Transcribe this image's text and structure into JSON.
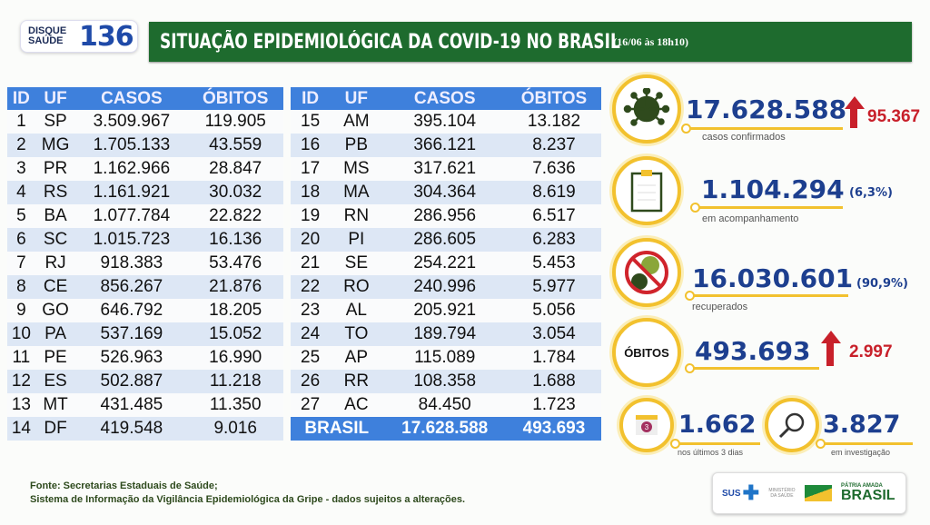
{
  "logo": {
    "top": "DISQUE",
    "bottom": "SAÚDE",
    "number": "136"
  },
  "header": {
    "title": "SITUAÇÃO EPIDEMIOLÓGICA DA COVID-19 NO BRASIL",
    "date": "(16/06 às 18h10)"
  },
  "table": {
    "columns": [
      "ID",
      "UF",
      "CASOS",
      "ÓBITOS"
    ],
    "left": [
      [
        "1",
        "SP",
        "3.509.967",
        "119.905"
      ],
      [
        "2",
        "MG",
        "1.705.133",
        "43.559"
      ],
      [
        "3",
        "PR",
        "1.162.966",
        "28.847"
      ],
      [
        "4",
        "RS",
        "1.161.921",
        "30.032"
      ],
      [
        "5",
        "BA",
        "1.077.784",
        "22.822"
      ],
      [
        "6",
        "SC",
        "1.015.723",
        "16.136"
      ],
      [
        "7",
        "RJ",
        "918.383",
        "53.476"
      ],
      [
        "8",
        "CE",
        "856.267",
        "21.876"
      ],
      [
        "9",
        "GO",
        "646.792",
        "18.205"
      ],
      [
        "10",
        "PA",
        "537.169",
        "15.052"
      ],
      [
        "11",
        "PE",
        "526.963",
        "16.990"
      ],
      [
        "12",
        "ES",
        "502.887",
        "11.218"
      ],
      [
        "13",
        "MT",
        "431.485",
        "11.350"
      ],
      [
        "14",
        "DF",
        "419.548",
        "9.016"
      ]
    ],
    "right": [
      [
        "15",
        "AM",
        "395.104",
        "13.182"
      ],
      [
        "16",
        "PB",
        "366.121",
        "8.237"
      ],
      [
        "17",
        "MS",
        "317.621",
        "7.636"
      ],
      [
        "18",
        "MA",
        "304.364",
        "8.619"
      ],
      [
        "19",
        "RN",
        "286.956",
        "6.517"
      ],
      [
        "20",
        "PI",
        "286.605",
        "6.283"
      ],
      [
        "21",
        "SE",
        "254.221",
        "5.453"
      ],
      [
        "22",
        "RO",
        "240.996",
        "5.977"
      ],
      [
        "23",
        "AL",
        "205.921",
        "5.056"
      ],
      [
        "24",
        "TO",
        "189.794",
        "3.054"
      ],
      [
        "25",
        "AP",
        "115.089",
        "1.784"
      ],
      [
        "26",
        "RR",
        "108.358",
        "1.688"
      ],
      [
        "27",
        "AC",
        "84.450",
        "1.723"
      ]
    ],
    "total": {
      "label": "BRASIL",
      "casos": "17.628.588",
      "obitos": "493.693"
    }
  },
  "stats": {
    "confirmed": {
      "value": "17.628.588",
      "delta": "95.367",
      "label": "casos confirmados"
    },
    "monitoring": {
      "value": "1.104.294",
      "pct": "(6,3%)",
      "label": "em acompanhamento"
    },
    "recovered": {
      "value": "16.030.601",
      "pct": "(90,9%)",
      "label": "recuperados"
    },
    "deaths": {
      "badge": "ÓBITOS",
      "value": "493.693",
      "delta": "2.997"
    },
    "last3": {
      "value": "1.662",
      "label": "nos últimos 3 dias",
      "cal": "3"
    },
    "investigation": {
      "value": "3.827",
      "label": "em investigação"
    }
  },
  "footer": {
    "line1": "Fonte: Secretarias Estaduais de Saúde;",
    "line2": "Sistema de Informação da Vigilância Epidemiológica da Gripe - dados sujeitos a alterações."
  },
  "brand": {
    "sus": "SUS",
    "ministry": "MINISTÉRIO DA SAÚDE",
    "patria": "PÁTRIA AMADA",
    "brasil": "BRASIL"
  },
  "colors": {
    "green": "#1e6b2e",
    "blue": "#3e80dc",
    "yellow": "#f2c12e",
    "red": "#c8202a",
    "navy": "#1d3f8f"
  }
}
